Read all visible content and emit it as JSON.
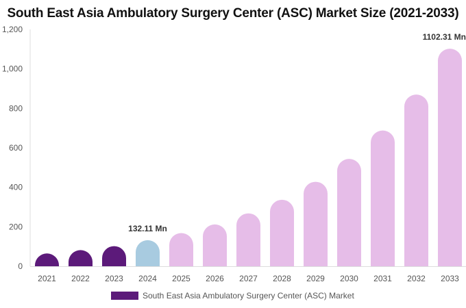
{
  "chart_data": {
    "type": "bar",
    "title": "South East Asia Ambulatory Surgery Center (ASC) Market Size (2021-2033)",
    "categories": [
      "2021",
      "2022",
      "2023",
      "2024",
      "2025",
      "2026",
      "2027",
      "2028",
      "2029",
      "2030",
      "2031",
      "2032",
      "2033"
    ],
    "values": [
      65,
      82,
      102,
      132.11,
      168,
      212,
      268,
      337,
      428,
      544,
      688,
      870,
      1102.31
    ],
    "colors": [
      "#5c1a7a",
      "#5c1a7a",
      "#5c1a7a",
      "#a8cbe0",
      "#e6bde8",
      "#e6bde8",
      "#e6bde8",
      "#e6bde8",
      "#e6bde8",
      "#e6bde8",
      "#e6bde8",
      "#e6bde8",
      "#e6bde8"
    ],
    "ylim": [
      0,
      1200
    ],
    "yticks": [
      0,
      200,
      400,
      600,
      800,
      1000,
      1200
    ],
    "ytick_labels": [
      "0",
      "200",
      "400",
      "600",
      "800",
      "1,000",
      "1,200"
    ],
    "data_labels": [
      {
        "index": 3,
        "text": "132.11 Mn"
      },
      {
        "index": 12,
        "text": "1102.31 Mn"
      }
    ],
    "xlabel": "",
    "ylabel": "",
    "grid": false,
    "legend": {
      "position": "bottom",
      "entries": [
        {
          "name": "South East Asia Ambulatory Surgery Center (ASC) Market",
          "color": "#5c1a7a"
        }
      ]
    }
  }
}
